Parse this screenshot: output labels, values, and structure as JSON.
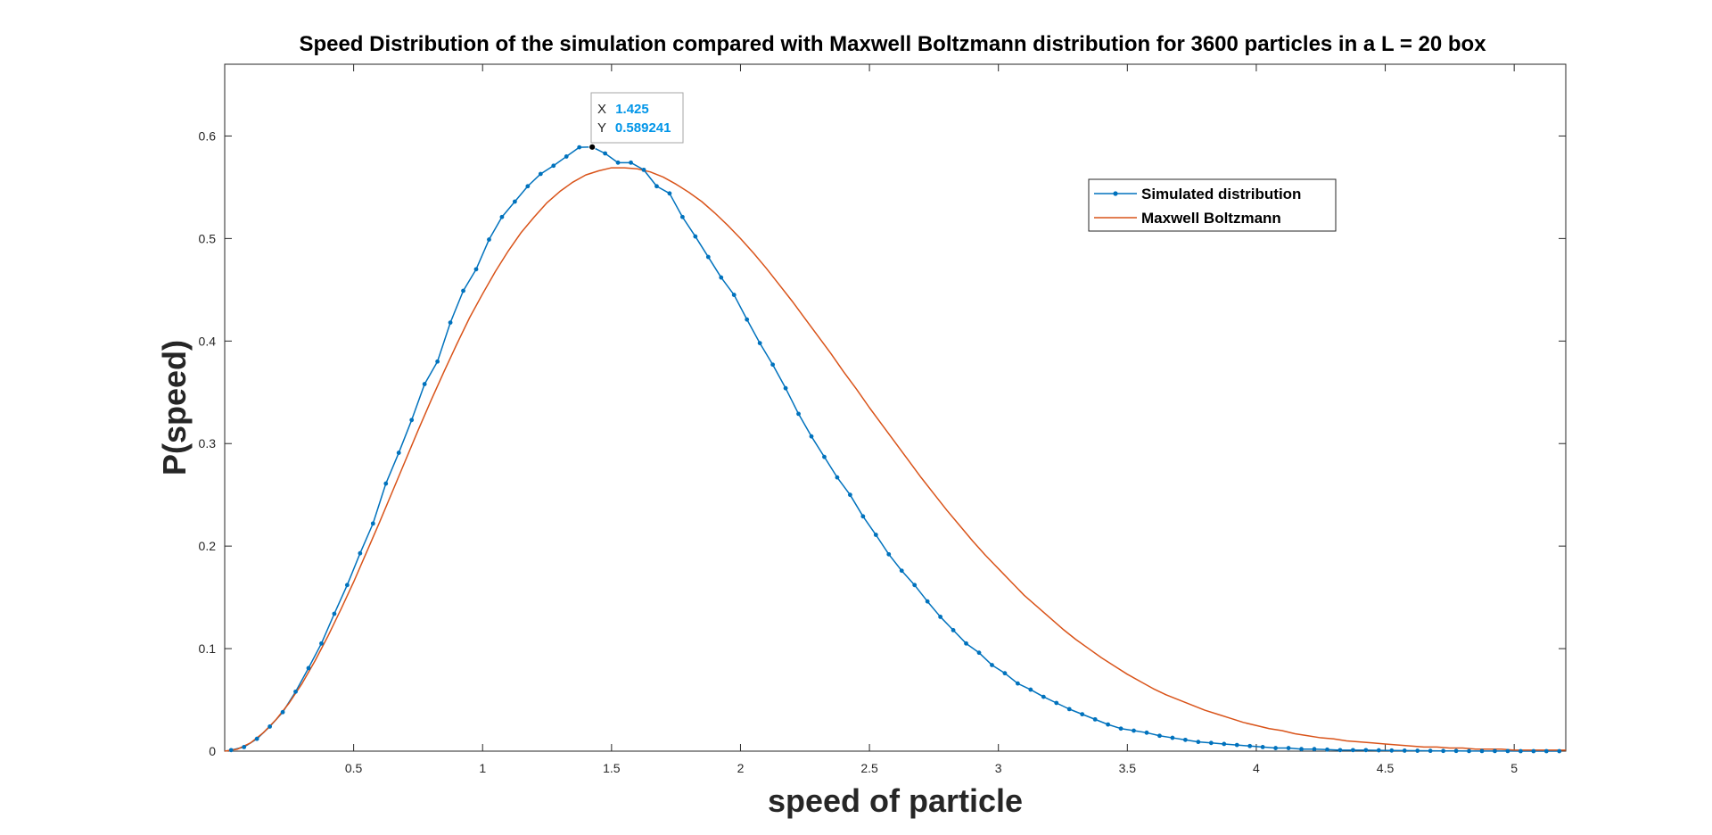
{
  "chart_data": {
    "type": "line",
    "title": "Speed Distribution of the simulation compared with Maxwell Boltzmann distribution for 3600 particles in a L = 20 box",
    "xlabel": "speed of particle",
    "ylabel": "P(speed)",
    "xlim": [
      0,
      5.2
    ],
    "ylim": [
      0,
      0.67
    ],
    "xticks": [
      0.5,
      1,
      1.5,
      2,
      2.5,
      3,
      3.5,
      4,
      4.5,
      5
    ],
    "xtick_labels": [
      "0.5",
      "1",
      "1.5",
      "2",
      "2.5",
      "3",
      "3.5",
      "4",
      "4.5",
      "5"
    ],
    "yticks": [
      0,
      0.1,
      0.2,
      0.3,
      0.4,
      0.5,
      0.6
    ],
    "ytick_labels": [
      "0",
      "0.1",
      "0.2",
      "0.3",
      "0.4",
      "0.5",
      "0.6"
    ],
    "grid": false,
    "legend_position": "top-right",
    "series": [
      {
        "name": "Simulated distribution",
        "color": "#0072BD",
        "marker": "dot",
        "x": [
          0.025,
          0.075,
          0.125,
          0.175,
          0.225,
          0.275,
          0.325,
          0.375,
          0.425,
          0.475,
          0.525,
          0.575,
          0.625,
          0.675,
          0.725,
          0.775,
          0.825,
          0.875,
          0.925,
          0.975,
          1.025,
          1.075,
          1.125,
          1.175,
          1.225,
          1.275,
          1.325,
          1.375,
          1.425,
          1.475,
          1.525,
          1.575,
          1.625,
          1.675,
          1.725,
          1.775,
          1.825,
          1.875,
          1.925,
          1.975,
          2.025,
          2.075,
          2.125,
          2.175,
          2.225,
          2.275,
          2.325,
          2.375,
          2.425,
          2.475,
          2.525,
          2.575,
          2.625,
          2.675,
          2.725,
          2.775,
          2.825,
          2.875,
          2.925,
          2.975,
          3.025,
          3.075,
          3.125,
          3.175,
          3.225,
          3.275,
          3.325,
          3.375,
          3.425,
          3.475,
          3.525,
          3.575,
          3.625,
          3.675,
          3.725,
          3.775,
          3.825,
          3.875,
          3.925,
          3.975,
          4.025,
          4.075,
          4.125,
          4.175,
          4.225,
          4.275,
          4.325,
          4.375,
          4.425,
          4.475,
          4.525,
          4.575,
          4.625,
          4.675,
          4.725,
          4.775,
          4.825,
          4.875,
          4.925,
          4.975,
          5.025,
          5.075,
          5.125,
          5.175
        ],
        "y": [
          0.001,
          0.004,
          0.012,
          0.024,
          0.038,
          0.058,
          0.081,
          0.105,
          0.134,
          0.162,
          0.193,
          0.222,
          0.261,
          0.291,
          0.323,
          0.358,
          0.38,
          0.418,
          0.449,
          0.47,
          0.499,
          0.521,
          0.536,
          0.551,
          0.563,
          0.571,
          0.58,
          0.589,
          0.589241,
          0.583,
          0.574,
          0.574,
          0.567,
          0.551,
          0.544,
          0.521,
          0.502,
          0.482,
          0.462,
          0.445,
          0.421,
          0.398,
          0.377,
          0.354,
          0.329,
          0.307,
          0.287,
          0.267,
          0.25,
          0.229,
          0.211,
          0.192,
          0.176,
          0.162,
          0.146,
          0.131,
          0.118,
          0.105,
          0.096,
          0.084,
          0.076,
          0.066,
          0.06,
          0.053,
          0.047,
          0.041,
          0.036,
          0.031,
          0.026,
          0.022,
          0.02,
          0.018,
          0.015,
          0.013,
          0.011,
          0.009,
          0.008,
          0.007,
          0.006,
          0.005,
          0.004,
          0.003,
          0.003,
          0.002,
          0.002,
          0.0015,
          0.001,
          0.001,
          0.001,
          0.0008,
          0.0006,
          0.0005,
          0.0004,
          0.0003,
          0.0002,
          0.0002,
          0.0001,
          0.0001,
          0.0001,
          0.0001,
          0,
          0,
          0,
          0
        ]
      },
      {
        "name": "Maxwell Boltzmann",
        "color": "#D95319",
        "marker": "none",
        "x": [
          0.0,
          0.05,
          0.1,
          0.15,
          0.2,
          0.25,
          0.3,
          0.35,
          0.4,
          0.45,
          0.5,
          0.55,
          0.6,
          0.65,
          0.7,
          0.75,
          0.8,
          0.85,
          0.9,
          0.95,
          1.0,
          1.05,
          1.1,
          1.15,
          1.2,
          1.25,
          1.3,
          1.35,
          1.4,
          1.45,
          1.5,
          1.55,
          1.6,
          1.65,
          1.7,
          1.75,
          1.8,
          1.85,
          1.9,
          1.95,
          2.0,
          2.05,
          2.1,
          2.15,
          2.2,
          2.25,
          2.3,
          2.35,
          2.4,
          2.45,
          2.5,
          2.55,
          2.6,
          2.65,
          2.7,
          2.75,
          2.8,
          2.85,
          2.9,
          2.95,
          3.0,
          3.05,
          3.1,
          3.15,
          3.2,
          3.25,
          3.3,
          3.35,
          3.4,
          3.45,
          3.5,
          3.55,
          3.6,
          3.65,
          3.7,
          3.75,
          3.8,
          3.85,
          3.9,
          3.95,
          4.0,
          4.05,
          4.1,
          4.15,
          4.2,
          4.25,
          4.3,
          4.35,
          4.4,
          4.45,
          4.5,
          4.55,
          4.6,
          4.65,
          4.7,
          4.75,
          4.8,
          4.85,
          4.9,
          4.95,
          5.0,
          5.05,
          5.1,
          5.15,
          5.2
        ],
        "y": [
          0,
          0.002,
          0.008,
          0.018,
          0.031,
          0.047,
          0.066,
          0.088,
          0.112,
          0.138,
          0.165,
          0.194,
          0.223,
          0.253,
          0.283,
          0.313,
          0.342,
          0.37,
          0.397,
          0.423,
          0.446,
          0.468,
          0.488,
          0.506,
          0.521,
          0.535,
          0.546,
          0.555,
          0.562,
          0.566,
          0.569,
          0.569,
          0.568,
          0.565,
          0.56,
          0.553,
          0.545,
          0.536,
          0.525,
          0.513,
          0.5,
          0.486,
          0.471,
          0.455,
          0.439,
          0.422,
          0.405,
          0.388,
          0.37,
          0.353,
          0.335,
          0.318,
          0.301,
          0.284,
          0.267,
          0.251,
          0.235,
          0.22,
          0.205,
          0.191,
          0.178,
          0.165,
          0.152,
          0.141,
          0.13,
          0.119,
          0.109,
          0.1,
          0.091,
          0.083,
          0.075,
          0.068,
          0.061,
          0.055,
          0.05,
          0.045,
          0.04,
          0.036,
          0.032,
          0.028,
          0.025,
          0.022,
          0.02,
          0.017,
          0.015,
          0.013,
          0.012,
          0.01,
          0.009,
          0.008,
          0.007,
          0.006,
          0.005,
          0.004,
          0.004,
          0.003,
          0.003,
          0.002,
          0.002,
          0.002,
          0.001,
          0.001,
          0.001,
          0.001,
          0.001
        ]
      }
    ],
    "datatip": {
      "x_label": "X",
      "x_value": "1.425",
      "y_label": "Y",
      "y_value": "0.589241",
      "point": [
        1.425,
        0.589241
      ],
      "value_color": "#0095E8"
    }
  }
}
